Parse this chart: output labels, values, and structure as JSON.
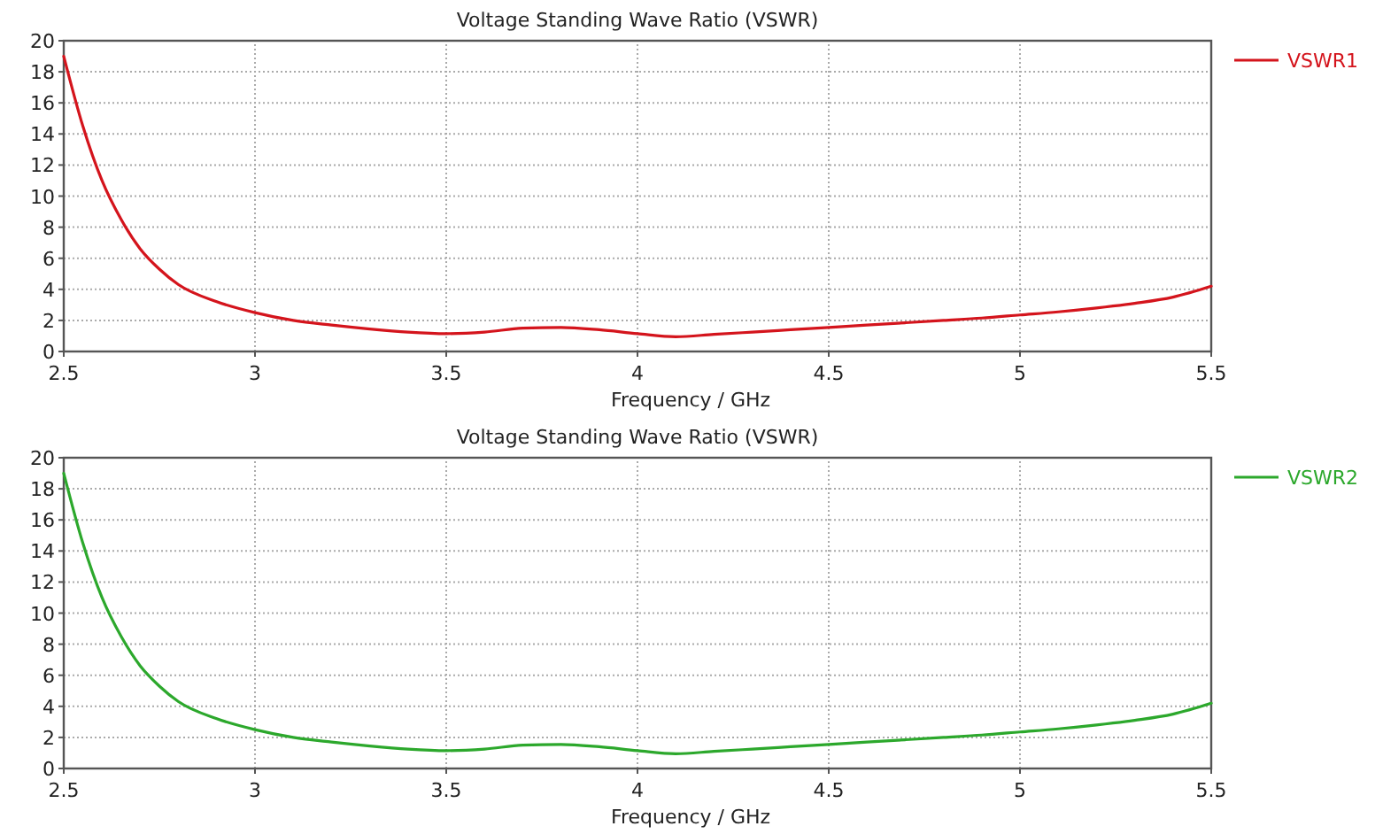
{
  "chart_data": [
    {
      "type": "line",
      "title": "Voltage Standing Wave Ratio (VSWR)",
      "xlabel": "Frequency / GHz",
      "xlim": [
        2.5,
        5.5
      ],
      "xticks": [
        2.5,
        3,
        3.5,
        4,
        4.5,
        5,
        5.5
      ],
      "ylim": [
        0,
        20
      ],
      "yticks": [
        0,
        2,
        4,
        6,
        8,
        10,
        12,
        14,
        16,
        18,
        20
      ],
      "grid": true,
      "legend": "right",
      "x": [
        2.5,
        2.55,
        2.6,
        2.65,
        2.7,
        2.75,
        2.8,
        2.9,
        3.0,
        3.1,
        3.2,
        3.3,
        3.4,
        3.5,
        3.6,
        3.7,
        3.8,
        3.9,
        4.0,
        4.1,
        4.2,
        4.3,
        4.4,
        4.5,
        4.6,
        4.7,
        4.8,
        4.9,
        5.0,
        5.1,
        5.2,
        5.3,
        5.4,
        5.5
      ],
      "series": [
        {
          "name": "VSWR1",
          "color": "#d4141c",
          "values": [
            19,
            14.5,
            11,
            8.5,
            6.6,
            5.3,
            4.3,
            3.2,
            2.5,
            2.0,
            1.7,
            1.45,
            1.25,
            1.15,
            1.25,
            1.5,
            1.55,
            1.4,
            1.15,
            0.95,
            1.1,
            1.25,
            1.4,
            1.55,
            1.7,
            1.85,
            2.0,
            2.15,
            2.35,
            2.55,
            2.8,
            3.1,
            3.5,
            4.2
          ]
        }
      ]
    },
    {
      "type": "line",
      "title": "Voltage Standing Wave Ratio (VSWR)",
      "xlabel": "Frequency / GHz",
      "xlim": [
        2.5,
        5.5
      ],
      "xticks": [
        2.5,
        3,
        3.5,
        4,
        4.5,
        5,
        5.5
      ],
      "ylim": [
        0,
        20
      ],
      "yticks": [
        0,
        2,
        4,
        6,
        8,
        10,
        12,
        14,
        16,
        18,
        20
      ],
      "grid": true,
      "legend": "right",
      "x": [
        2.5,
        2.55,
        2.6,
        2.65,
        2.7,
        2.75,
        2.8,
        2.9,
        3.0,
        3.1,
        3.2,
        3.3,
        3.4,
        3.5,
        3.6,
        3.7,
        3.8,
        3.9,
        4.0,
        4.1,
        4.2,
        4.3,
        4.4,
        4.5,
        4.6,
        4.7,
        4.8,
        4.9,
        5.0,
        5.1,
        5.2,
        5.3,
        5.4,
        5.5
      ],
      "series": [
        {
          "name": "VSWR2",
          "color": "#2ca82c",
          "values": [
            19,
            14.5,
            11,
            8.5,
            6.6,
            5.3,
            4.3,
            3.2,
            2.5,
            2.0,
            1.7,
            1.45,
            1.25,
            1.15,
            1.25,
            1.5,
            1.55,
            1.4,
            1.15,
            0.95,
            1.1,
            1.25,
            1.4,
            1.55,
            1.7,
            1.85,
            2.0,
            2.15,
            2.35,
            2.55,
            2.8,
            3.1,
            3.5,
            4.2
          ]
        }
      ]
    }
  ]
}
